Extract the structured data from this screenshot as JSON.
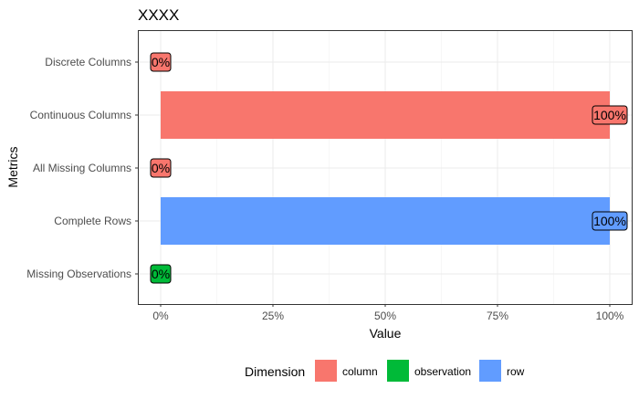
{
  "chart_data": {
    "type": "bar",
    "orientation": "horizontal",
    "title": "XXXX",
    "xlabel": "Value",
    "ylabel": "Metrics",
    "xlim": [
      0,
      1
    ],
    "x_ticks": [
      {
        "value": 0,
        "label": "0%"
      },
      {
        "value": 0.25,
        "label": "25%"
      },
      {
        "value": 0.5,
        "label": "50%"
      },
      {
        "value": 0.75,
        "label": "75%"
      },
      {
        "value": 1,
        "label": "100%"
      }
    ],
    "categories": [
      "Discrete Columns",
      "Continuous Columns",
      "All Missing Columns",
      "Complete Rows",
      "Missing Observations"
    ],
    "values": [
      0,
      1,
      0,
      1,
      0
    ],
    "value_labels": [
      "0%",
      "100%",
      "0%",
      "100%",
      "0%"
    ],
    "dimension": [
      "column",
      "column",
      "column",
      "row",
      "observation"
    ],
    "grid": true,
    "legend": {
      "title": "Dimension",
      "placement": "bottom",
      "entries": [
        {
          "name": "column",
          "color": "#F8766D"
        },
        {
          "name": "observation",
          "color": "#00BA38"
        },
        {
          "name": "row",
          "color": "#619CFF"
        }
      ]
    }
  }
}
